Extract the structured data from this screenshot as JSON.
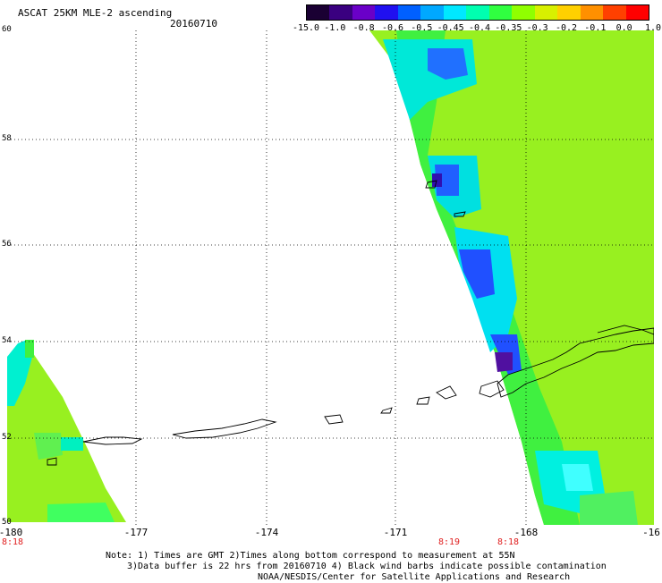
{
  "header": {
    "title": "ASCAT 25KM MLE-2 ascending",
    "date": "20160710"
  },
  "colorbar": {
    "labels": [
      "-15.0",
      "-1.0",
      "-0.8",
      "-0.6",
      "-0.5",
      "-0.45",
      "-0.4",
      "-0.35",
      "-0.3",
      "-0.2",
      "-0.1",
      "0.0",
      "1.0"
    ],
    "colors": [
      "#1a0033",
      "#3a0080",
      "#6a00c8",
      "#2010f0",
      "#0060ff",
      "#00a8ff",
      "#00e8ff",
      "#00ffb0",
      "#30ff40",
      "#90ff00",
      "#d8f000",
      "#ffd000",
      "#ff9000",
      "#ff4000",
      "#ff0000"
    ]
  },
  "axes": {
    "y_labels": [
      "60",
      "58",
      "56",
      "54",
      "52",
      "50"
    ],
    "x_labels": [
      "-180",
      "-177",
      "-174",
      "-171",
      "-168",
      "-16"
    ]
  },
  "time_labels": [
    "8:18",
    "8:19",
    "8:18"
  ],
  "note": {
    "line1": "Note: 1) Times are GMT 2)Times along bottom correspond to measurement at 55N",
    "line2": "3)Data buffer is 22 hrs from 20160710 4) Black wind barbs indicate possible contamination",
    "line3": "NOAA/NESDIS/Center for Satellite Applications and Research"
  },
  "map_colors": {
    "ocean_main": "#98f020",
    "ocean_green": "#40f040",
    "ocean_cyan": "#00f0e0",
    "ocean_blue": "#1868ff",
    "ocean_dark": "#3010c0",
    "land_outline": "#000000",
    "grid": "#000000"
  }
}
